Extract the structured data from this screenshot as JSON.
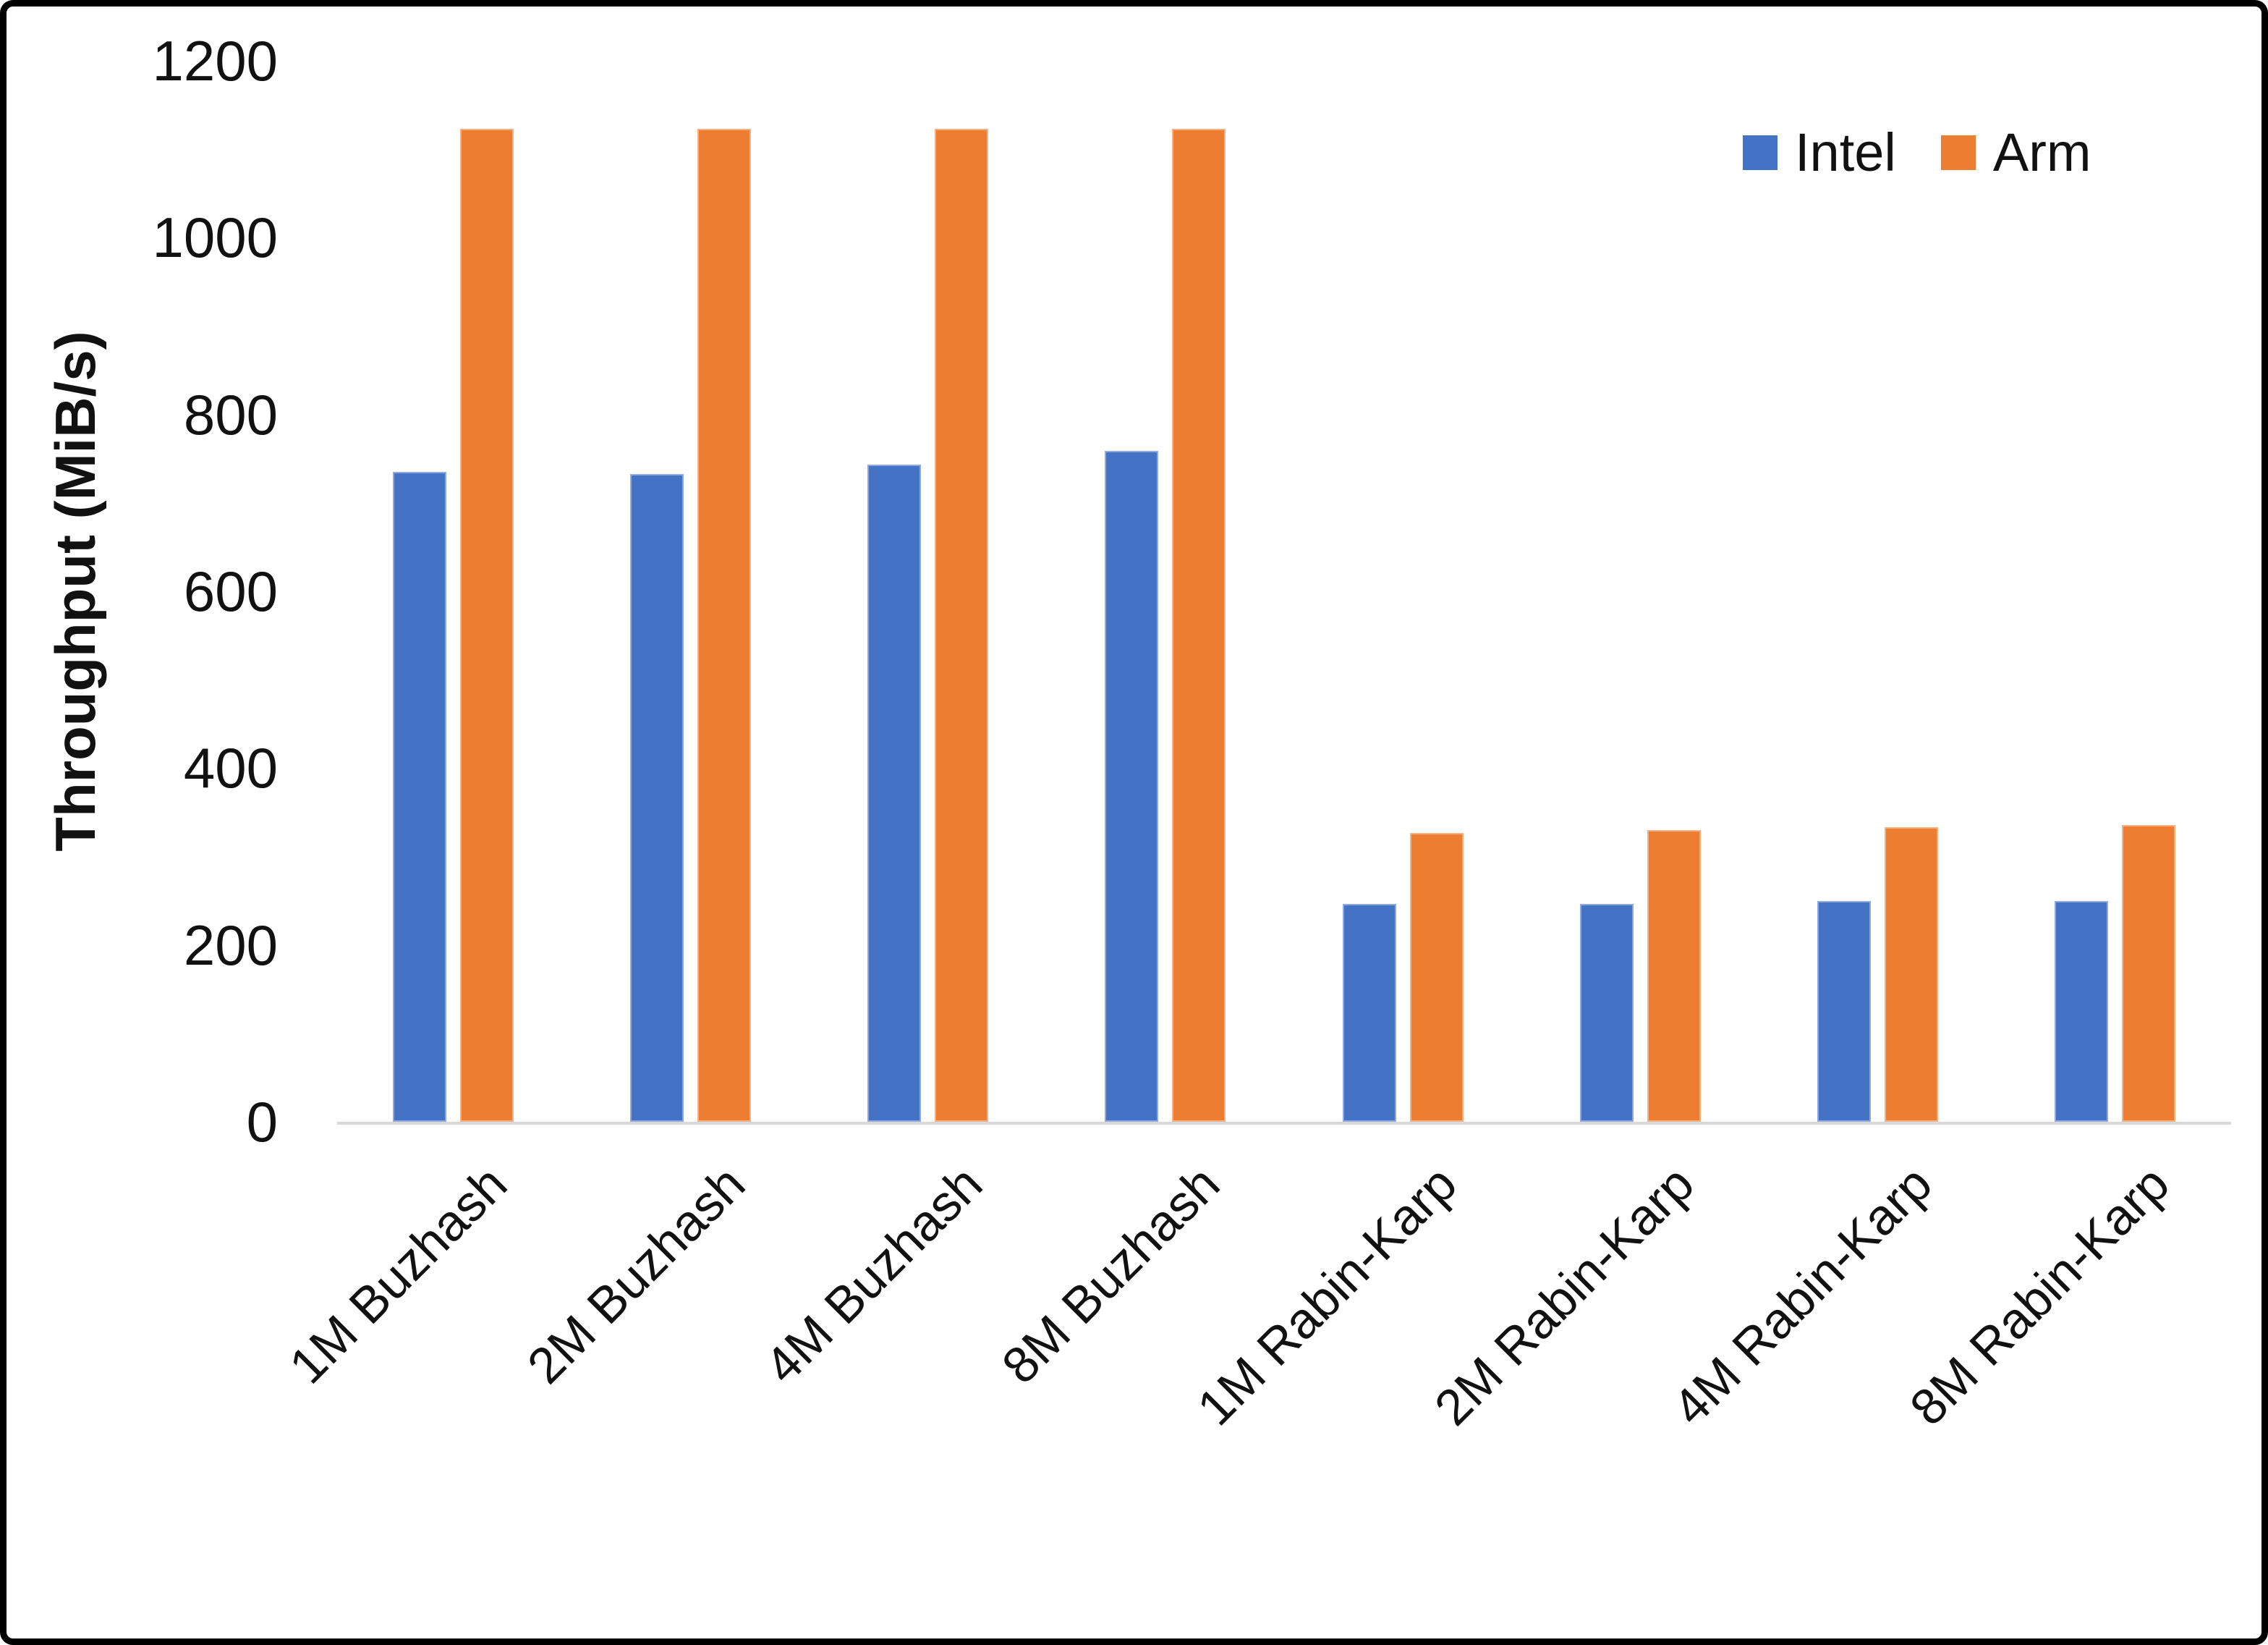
{
  "chart_data": {
    "type": "bar",
    "title": "",
    "xlabel": "",
    "ylabel": "Throughput (MiB/s)",
    "ylim": [
      0,
      1200
    ],
    "yticks": [
      0,
      200,
      400,
      600,
      800,
      1000,
      1200
    ],
    "grid": false,
    "legend_position": "top-right",
    "categories": [
      "1M Buzhash",
      "2M Buzhash",
      "4M Buzhash",
      "8M Buzhash",
      "1M Rabin-Karp",
      "2M Rabin-Karp",
      "4M Rabin-Karp",
      "8M Rabin-Karp"
    ],
    "series": [
      {
        "name": "Intel",
        "color": "#4472C4",
        "values": [
          735,
          733,
          743,
          759,
          246,
          246,
          250,
          250
        ]
      },
      {
        "name": "Arm",
        "color": "#ED7D31",
        "values": [
          1123,
          1123,
          1123,
          1123,
          327,
          330,
          333,
          336
        ]
      }
    ]
  }
}
